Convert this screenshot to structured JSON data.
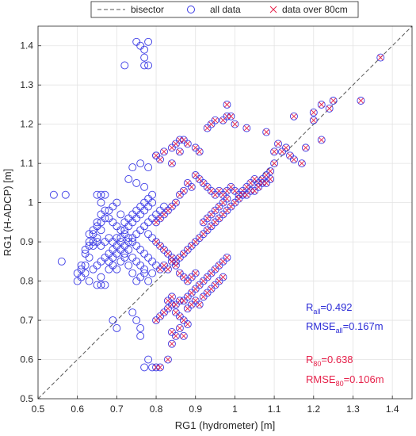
{
  "chart_data": {
    "type": "scatter",
    "xlabel": "RG1 (hydrometer) [m]",
    "ylabel": "RG1 (H-ADCP) [m]",
    "xlim": [
      0.5,
      1.45
    ],
    "ylim": [
      0.5,
      1.45
    ],
    "x_ticks": [
      "0.5",
      "0.6",
      "0.7",
      "0.8",
      "0.9",
      "1",
      "1.1",
      "1.2",
      "1.3",
      "1.4"
    ],
    "y_ticks": [
      "0.5",
      "0.6",
      "0.7",
      "0.8",
      "0.9",
      "1",
      "1.1",
      "1.2",
      "1.3",
      "1.4"
    ],
    "grid": true,
    "legend_position": "top-outside",
    "legend": [
      {
        "label": "bisector",
        "marker": "dashed-line",
        "color": "#555555"
      },
      {
        "label": "all data",
        "marker": "circle",
        "color": "#3a3ae6"
      },
      {
        "label": "data over 80cm",
        "marker": "cross",
        "color": "#e6224b"
      }
    ],
    "stats": [
      {
        "main": "R",
        "sub": "all",
        "value": "=0.492",
        "color": "#2b2bd6"
      },
      {
        "main": "RMSE",
        "sub": "all",
        "value": "=0.167m",
        "color": "#2b2bd6"
      },
      {
        "main": "R",
        "sub": "80",
        "value": "=0.638",
        "color": "#e6224b"
      },
      {
        "main": "RMSE",
        "sub": "80",
        "value": "=0.106m",
        "color": "#e6224b"
      }
    ],
    "bisector": [
      [
        0.5,
        0.5
      ],
      [
        1.45,
        1.45
      ]
    ],
    "series": [
      {
        "name": "all data",
        "color": "#3a3ae6",
        "points": [
          [
            0.54,
            1.02
          ],
          [
            0.57,
            1.02
          ],
          [
            0.56,
            0.85
          ],
          [
            0.6,
            0.8
          ],
          [
            0.61,
            0.81
          ],
          [
            0.62,
            0.84
          ],
          [
            0.61,
            0.84
          ],
          [
            0.62,
            0.87
          ],
          [
            0.63,
            0.86
          ],
          [
            0.62,
            0.88
          ],
          [
            0.63,
            0.89
          ],
          [
            0.64,
            0.9
          ],
          [
            0.65,
            0.91
          ],
          [
            0.64,
            0.92
          ],
          [
            0.66,
            0.93
          ],
          [
            0.65,
            0.94
          ],
          [
            0.66,
            0.95
          ],
          [
            0.67,
            0.96
          ],
          [
            0.68,
            0.98
          ],
          [
            0.69,
            0.99
          ],
          [
            0.7,
            1.0
          ],
          [
            0.71,
            0.97
          ],
          [
            0.72,
            0.95
          ],
          [
            0.73,
            0.96
          ],
          [
            0.74,
            0.97
          ],
          [
            0.75,
            0.98
          ],
          [
            0.76,
            0.99
          ],
          [
            0.77,
            1.0
          ],
          [
            0.78,
            1.01
          ],
          [
            0.79,
            1.02
          ],
          [
            0.65,
            1.02
          ],
          [
            0.66,
            1.02
          ],
          [
            0.67,
            1.02
          ],
          [
            0.66,
            1.0
          ],
          [
            0.68,
            0.96
          ],
          [
            0.69,
            0.95
          ],
          [
            0.7,
            0.94
          ],
          [
            0.71,
            0.93
          ],
          [
            0.72,
            0.92
          ],
          [
            0.73,
            0.91
          ],
          [
            0.74,
            0.9
          ],
          [
            0.75,
            0.89
          ],
          [
            0.76,
            0.88
          ],
          [
            0.77,
            0.87
          ],
          [
            0.78,
            0.86
          ],
          [
            0.79,
            0.85
          ],
          [
            0.65,
            0.79
          ],
          [
            0.66,
            0.79
          ],
          [
            0.67,
            0.79
          ],
          [
            0.66,
            0.81
          ],
          [
            0.68,
            0.83
          ],
          [
            0.69,
            0.84
          ],
          [
            0.7,
            0.83
          ],
          [
            0.71,
            0.85
          ],
          [
            0.72,
            0.86
          ],
          [
            0.73,
            0.84
          ],
          [
            0.74,
            0.82
          ],
          [
            0.75,
            0.8
          ],
          [
            0.76,
            0.81
          ],
          [
            0.77,
            0.83
          ],
          [
            0.7,
            0.68
          ],
          [
            0.69,
            0.7
          ],
          [
            0.74,
            0.72
          ],
          [
            0.75,
            0.7
          ],
          [
            0.76,
            0.68
          ],
          [
            0.76,
            0.66
          ],
          [
            0.77,
            0.58
          ],
          [
            0.79,
            0.58
          ],
          [
            0.78,
            0.6
          ],
          [
            0.72,
            1.35
          ],
          [
            0.75,
            1.41
          ],
          [
            0.76,
            1.4
          ],
          [
            0.77,
            1.39
          ],
          [
            0.78,
            1.41
          ],
          [
            0.77,
            1.37
          ],
          [
            0.78,
            1.35
          ],
          [
            0.77,
            1.35
          ],
          [
            0.74,
            1.09
          ],
          [
            0.76,
            1.1
          ],
          [
            0.78,
            1.09
          ],
          [
            0.8,
            1.12
          ],
          [
            0.73,
            1.06
          ],
          [
            0.75,
            1.05
          ],
          [
            0.77,
            1.04
          ],
          [
            0.63,
            0.9
          ],
          [
            0.64,
            0.89
          ],
          [
            0.65,
            0.9
          ],
          [
            0.66,
            0.89
          ],
          [
            0.67,
            0.9
          ],
          [
            0.68,
            0.91
          ],
          [
            0.69,
            0.9
          ],
          [
            0.7,
            0.91
          ],
          [
            0.71,
            0.9
          ],
          [
            0.72,
            0.89
          ],
          [
            0.73,
            0.9
          ],
          [
            0.74,
            0.91
          ],
          [
            0.75,
            0.92
          ],
          [
            0.76,
            0.93
          ],
          [
            0.77,
            0.94
          ],
          [
            0.78,
            0.95
          ],
          [
            0.79,
            0.96
          ],
          [
            0.8,
            0.97
          ],
          [
            0.81,
            0.98
          ],
          [
            0.82,
            0.99
          ],
          [
            0.63,
            0.92
          ],
          [
            0.64,
            0.93
          ],
          [
            0.65,
            0.95
          ],
          [
            0.66,
            0.97
          ],
          [
            0.67,
            0.98
          ],
          [
            0.68,
            0.87
          ],
          [
            0.69,
            0.88
          ],
          [
            0.7,
            0.87
          ],
          [
            0.71,
            0.88
          ],
          [
            0.72,
            0.87
          ],
          [
            0.73,
            0.88
          ],
          [
            0.74,
            0.86
          ],
          [
            0.75,
            0.85
          ],
          [
            0.76,
            0.84
          ],
          [
            0.77,
            0.82
          ],
          [
            0.78,
            0.8
          ],
          [
            0.79,
            0.82
          ],
          [
            0.8,
            0.84
          ],
          [
            0.78,
            0.92
          ],
          [
            0.79,
            0.91
          ],
          [
            0.6,
            0.82
          ],
          [
            0.61,
            0.83
          ],
          [
            0.62,
            0.82
          ],
          [
            0.63,
            0.8
          ],
          [
            0.64,
            0.83
          ],
          [
            0.65,
            0.84
          ],
          [
            0.66,
            0.85
          ],
          [
            0.67,
            0.86
          ],
          [
            0.68,
            0.85
          ],
          [
            0.69,
            0.86
          ],
          [
            0.7,
            0.89
          ],
          [
            0.71,
            0.91
          ],
          [
            0.72,
            0.93
          ],
          [
            0.73,
            0.94
          ],
          [
            0.74,
            0.95
          ],
          [
            0.75,
            0.96
          ],
          [
            0.76,
            0.97
          ],
          [
            0.77,
            0.98
          ],
          [
            0.78,
            0.99
          ],
          [
            0.79,
            1.0
          ]
        ]
      },
      {
        "name": "data over 80cm",
        "color": "#e6224b",
        "points": [
          [
            0.8,
            1.12
          ],
          [
            0.81,
            1.11
          ],
          [
            0.82,
            1.13
          ],
          [
            0.84,
            1.14
          ],
          [
            0.85,
            1.15
          ],
          [
            0.86,
            1.16
          ],
          [
            0.87,
            1.16
          ],
          [
            0.88,
            1.15
          ],
          [
            0.86,
            1.13
          ],
          [
            0.84,
            1.1
          ],
          [
            0.9,
            1.14
          ],
          [
            0.91,
            1.13
          ],
          [
            0.93,
            1.19
          ],
          [
            0.94,
            1.2
          ],
          [
            0.95,
            1.21
          ],
          [
            0.97,
            1.21
          ],
          [
            0.98,
            1.22
          ],
          [
            0.98,
            1.25
          ],
          [
            0.99,
            1.22
          ],
          [
            1.0,
            1.2
          ],
          [
            1.03,
            1.19
          ],
          [
            1.08,
            1.18
          ],
          [
            1.15,
            1.22
          ],
          [
            1.2,
            1.23
          ],
          [
            1.22,
            1.25
          ],
          [
            1.25,
            1.26
          ],
          [
            1.32,
            1.26
          ],
          [
            1.37,
            1.37
          ],
          [
            1.24,
            1.24
          ],
          [
            1.18,
            1.14
          ],
          [
            1.2,
            1.21
          ],
          [
            1.22,
            1.16
          ],
          [
            1.17,
            1.1
          ],
          [
            1.15,
            1.11
          ],
          [
            1.14,
            1.12
          ],
          [
            1.11,
            1.15
          ],
          [
            1.1,
            1.13
          ],
          [
            1.12,
            1.13
          ],
          [
            1.13,
            1.14
          ],
          [
            1.1,
            1.1
          ],
          [
            1.09,
            1.08
          ],
          [
            1.08,
            1.07
          ],
          [
            1.07,
            1.06
          ],
          [
            1.06,
            1.05
          ],
          [
            1.05,
            1.06
          ],
          [
            1.04,
            1.05
          ],
          [
            1.03,
            1.04
          ],
          [
            1.02,
            1.03
          ],
          [
            1.01,
            1.02
          ],
          [
            1.0,
            1.03
          ],
          [
            0.99,
            1.04
          ],
          [
            0.98,
            1.03
          ],
          [
            0.97,
            1.02
          ],
          [
            0.96,
            1.03
          ],
          [
            0.95,
            1.02
          ],
          [
            0.94,
            1.03
          ],
          [
            0.93,
            1.04
          ],
          [
            0.92,
            1.05
          ],
          [
            0.91,
            1.06
          ],
          [
            0.9,
            1.07
          ],
          [
            0.89,
            1.04
          ],
          [
            0.88,
            1.05
          ],
          [
            0.87,
            1.03
          ],
          [
            0.86,
            1.02
          ],
          [
            0.85,
            1.0
          ],
          [
            0.84,
            0.99
          ],
          [
            0.83,
            0.98
          ],
          [
            0.82,
            0.97
          ],
          [
            0.81,
            0.96
          ],
          [
            0.8,
            0.95
          ],
          [
            0.8,
            0.9
          ],
          [
            0.81,
            0.89
          ],
          [
            0.82,
            0.88
          ],
          [
            0.83,
            0.87
          ],
          [
            0.84,
            0.86
          ],
          [
            0.85,
            0.85
          ],
          [
            0.86,
            0.86
          ],
          [
            0.87,
            0.87
          ],
          [
            0.88,
            0.88
          ],
          [
            0.89,
            0.89
          ],
          [
            0.9,
            0.9
          ],
          [
            0.91,
            0.91
          ],
          [
            0.92,
            0.92
          ],
          [
            0.93,
            0.93
          ],
          [
            0.94,
            0.94
          ],
          [
            0.95,
            0.95
          ],
          [
            0.96,
            0.96
          ],
          [
            0.97,
            0.97
          ],
          [
            0.98,
            0.98
          ],
          [
            0.99,
            0.99
          ],
          [
            1.0,
            1.0
          ],
          [
            1.01,
            1.01
          ],
          [
            1.02,
            1.02
          ],
          [
            1.03,
            1.02
          ],
          [
            1.04,
            1.03
          ],
          [
            1.05,
            1.03
          ],
          [
            1.06,
            1.04
          ],
          [
            1.07,
            1.05
          ],
          [
            1.08,
            1.05
          ],
          [
            1.09,
            1.06
          ],
          [
            0.81,
            0.83
          ],
          [
            0.82,
            0.84
          ],
          [
            0.83,
            0.83
          ],
          [
            0.84,
            0.85
          ],
          [
            0.85,
            0.84
          ],
          [
            0.86,
            0.82
          ],
          [
            0.87,
            0.81
          ],
          [
            0.88,
            0.8
          ],
          [
            0.89,
            0.81
          ],
          [
            0.9,
            0.82
          ],
          [
            0.8,
            0.7
          ],
          [
            0.81,
            0.71
          ],
          [
            0.82,
            0.72
          ],
          [
            0.83,
            0.73
          ],
          [
            0.84,
            0.74
          ],
          [
            0.85,
            0.74
          ],
          [
            0.86,
            0.75
          ],
          [
            0.87,
            0.75
          ],
          [
            0.88,
            0.76
          ],
          [
            0.89,
            0.77
          ],
          [
            0.9,
            0.78
          ],
          [
            0.91,
            0.79
          ],
          [
            0.92,
            0.8
          ],
          [
            0.93,
            0.81
          ],
          [
            0.94,
            0.82
          ],
          [
            0.95,
            0.83
          ],
          [
            0.96,
            0.84
          ],
          [
            0.97,
            0.85
          ],
          [
            0.98,
            0.86
          ],
          [
            0.92,
            0.76
          ],
          [
            0.83,
            0.75
          ],
          [
            0.84,
            0.76
          ],
          [
            0.85,
            0.72
          ],
          [
            0.86,
            0.71
          ],
          [
            0.87,
            0.7
          ],
          [
            0.88,
            0.69
          ],
          [
            0.84,
            0.64
          ],
          [
            0.85,
            0.66
          ],
          [
            0.86,
            0.68
          ],
          [
            0.83,
            0.6
          ],
          [
            0.8,
            0.58
          ],
          [
            0.81,
            0.58
          ],
          [
            0.84,
            0.67
          ],
          [
            0.87,
            0.66
          ],
          [
            0.88,
            0.73
          ],
          [
            0.89,
            0.74
          ],
          [
            0.9,
            0.75
          ],
          [
            0.91,
            0.74
          ],
          [
            0.93,
            0.77
          ],
          [
            0.94,
            0.78
          ],
          [
            0.95,
            0.79
          ],
          [
            0.96,
            0.8
          ],
          [
            0.97,
            0.81
          ],
          [
            0.92,
            0.95
          ],
          [
            0.93,
            0.96
          ],
          [
            0.94,
            0.97
          ],
          [
            0.95,
            0.98
          ],
          [
            0.96,
            0.99
          ],
          [
            0.97,
            1.0
          ],
          [
            0.98,
            1.01
          ]
        ]
      }
    ]
  }
}
